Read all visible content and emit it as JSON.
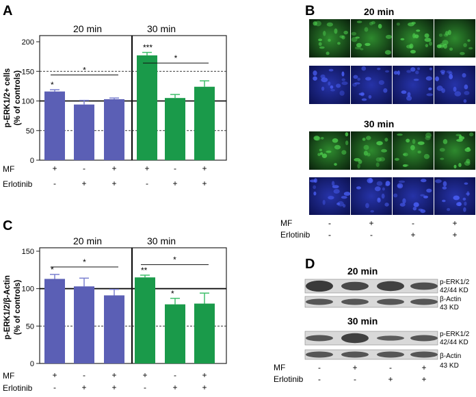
{
  "panels": {
    "A": "A",
    "B": "B",
    "C": "C",
    "D": "D"
  },
  "times": {
    "t20": "20 min",
    "t30": "30 min"
  },
  "conditions": {
    "mf_label": "MF",
    "erl_label": "Erlotinib",
    "mf": [
      "+",
      "-",
      "+",
      "+",
      "-",
      "+"
    ],
    "erl": [
      "-",
      "+",
      "+",
      "-",
      "+",
      "+"
    ],
    "mf4": [
      "-",
      "+",
      "-",
      "+"
    ],
    "erl4": [
      "-",
      "-",
      "+",
      "+"
    ]
  },
  "colors": {
    "blue_bar": "#5b5fb5",
    "green_bar": "#1a9a4a",
    "blue_err": "#7a7fd0",
    "green_err": "#3fbf6a"
  },
  "chart_data": [
    {
      "type": "bar",
      "panel": "A",
      "ylabel": "p-ERK1/2+ cells\n(% of controls)",
      "ylabel_line1": "p-ERK1/2+ cells",
      "ylabel_line2": "(% of controls)",
      "ylim": [
        0,
        200
      ],
      "yticks": [
        "0",
        "50",
        "100",
        "150",
        "200"
      ],
      "groups": [
        "20 min",
        "30 min"
      ],
      "values": [
        116,
        94,
        103,
        177,
        105,
        124
      ],
      "errors": [
        3,
        7,
        2,
        5,
        6,
        10
      ],
      "sig": [
        "*",
        "",
        "",
        "***",
        "",
        ""
      ],
      "brackets": [
        {
          "from": 0,
          "to": 2,
          "label": "*"
        },
        {
          "from": 3,
          "to": 5,
          "label": "*"
        }
      ]
    },
    {
      "type": "bar",
      "panel": "C",
      "ylabel": "p-ERK1/2/β-Actin\n(% of controls)",
      "ylabel_line1": "p-ERK1/2/β-Actin",
      "ylabel_line2": "(% of controls)",
      "ylim": [
        0,
        150
      ],
      "yticks": [
        "0",
        "50",
        "100",
        "150"
      ],
      "groups": [
        "20 min",
        "30 min"
      ],
      "values": [
        113,
        103,
        91,
        115,
        79,
        80
      ],
      "errors": [
        6,
        11,
        8,
        3,
        8,
        14
      ],
      "sig": [
        "*",
        "",
        "",
        "**",
        "*",
        ""
      ],
      "brackets": [
        {
          "from": 0,
          "to": 2,
          "label": "*"
        },
        {
          "from": 3,
          "to": 5,
          "label": "*"
        }
      ]
    }
  ],
  "blot": {
    "perk_line1": "p-ERK1/2",
    "perk_line2": "42/44 KD",
    "actin_line1": "β-Actin",
    "actin_line2": "43 KD"
  }
}
